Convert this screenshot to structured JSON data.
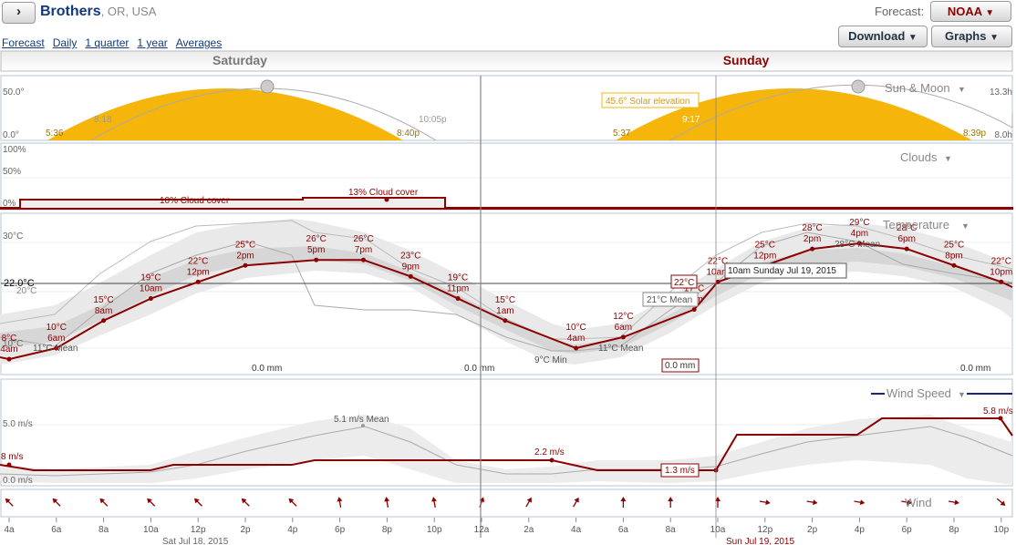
{
  "header": {
    "toggle": "›",
    "city": "Brothers",
    "region": ", OR, USA",
    "forecast_label": "Forecast:",
    "source": "NOAA",
    "download": "Download",
    "graphs": "Graphs"
  },
  "nav": [
    "Forecast",
    "Daily",
    "1 quarter",
    "1 year",
    "Averages"
  ],
  "days": [
    "Saturday",
    "Sunday"
  ],
  "panels": {
    "sun": {
      "title": "Sun & Moon",
      "y_hi": "50.0°",
      "y_lo": "0.0°",
      "r_hi": "13.3h",
      "r_lo": "8.0h",
      "sat_rise": "5:36",
      "sat_noon": "8:18",
      "sat_set": "8:40p",
      "sat_moonset": "10:05p",
      "sun_rise": "5:37",
      "sun_moon": "9:17",
      "sun_set": "8:39p",
      "callout": "45.6° Solar elevation"
    },
    "clouds": {
      "title": "Clouds",
      "y_100": "100%",
      "y_50": "50%",
      "y_0": "0%",
      "label_a": "10% Cloud cover",
      "label_b": "13% Cloud cover"
    },
    "temp": {
      "title": "Temperature",
      "y_30": "30°C",
      "y_20": "20°C",
      "y_10": "10°C",
      "cursor_value": "22.0°C",
      "tooltip": "10am Sunday Jul 19, 2015",
      "mean_tip": "21°C Mean",
      "max_tip": "22°C",
      "mean_low": "11°C Mean",
      "min_low": "9°C Min",
      "mean_hi": "28°C Mean",
      "precip": [
        "0.0 mm",
        "0.0 mm",
        "0.0 mm",
        "0.0 mm"
      ],
      "points": [
        [
          "8°C",
          "4am"
        ],
        [
          "10°C",
          "6am"
        ],
        [
          "15°C",
          "8am"
        ],
        [
          "19°C",
          "10am"
        ],
        [
          "22°C",
          "12pm"
        ],
        [
          "25°C",
          "2pm"
        ],
        [
          "26°C",
          "5pm"
        ],
        [
          "26°C",
          "7pm"
        ],
        [
          "23°C",
          "9pm"
        ],
        [
          "19°C",
          "11pm"
        ],
        [
          "15°C",
          "1am"
        ],
        [
          "10°C",
          "4am"
        ],
        [
          "12°C",
          "6am"
        ],
        [
          "17°C",
          "9am"
        ],
        [
          "22°C",
          "10am"
        ],
        [
          "25°C",
          "12pm"
        ],
        [
          "28°C",
          "2pm"
        ],
        [
          "29°C",
          "4pm"
        ],
        [
          "28°C",
          "6pm"
        ],
        [
          "25°C",
          "8pm"
        ],
        [
          "22°C",
          "10pm"
        ]
      ]
    },
    "wind": {
      "title": "Wind Speed",
      "title2": "Wind",
      "y_5": "5.0 m/s",
      "y_0": "0.0 m/s",
      "start": "8 m/s",
      "mean": "5.1 m/s Mean",
      "mid": "2.2 m/s",
      "cur": "1.3 m/s",
      "end": "5.8 m/s"
    }
  },
  "time_axis": [
    "4a",
    "6a",
    "8a",
    "10a",
    "12p",
    "2p",
    "4p",
    "6p",
    "8p",
    "10p",
    "12a",
    "2a",
    "4a",
    "6a",
    "8a",
    "10a",
    "12p",
    "2p",
    "4p",
    "6p",
    "8p",
    "10p"
  ],
  "dates": [
    "Sat Jul 18, 2015",
    "Sun Jul 19, 2015"
  ],
  "colors": {
    "accent": "#8b0000",
    "sun": "#f5b50a",
    "link": "#123a7d"
  },
  "chart_data": [
    {
      "type": "area",
      "title": "Sun & Moon",
      "series": [
        {
          "name": "Solar elevation",
          "x": [
            "5:36",
            "8:40p",
            "5:37",
            "8:39p"
          ],
          "values": [
            0,
            0,
            0,
            0
          ]
        }
      ],
      "annotation": "45.6° Solar elevation"
    },
    {
      "type": "line",
      "title": "Clouds",
      "ylim": [
        0,
        100
      ],
      "annotations": [
        "10% Cloud cover",
        "13% Cloud cover"
      ]
    },
    {
      "type": "line",
      "title": "Temperature",
      "ylabel": "°C",
      "x": [
        "4am",
        "6am",
        "8am",
        "10am",
        "12pm",
        "2pm",
        "5pm",
        "7pm",
        "9pm",
        "11pm",
        "1am",
        "4am",
        "6am",
        "9am",
        "10am",
        "12pm",
        "2pm",
        "4pm",
        "6pm",
        "8pm",
        "10pm"
      ],
      "values": [
        8,
        10,
        15,
        19,
        22,
        25,
        26,
        26,
        23,
        19,
        15,
        10,
        12,
        17,
        22,
        25,
        28,
        29,
        28,
        25,
        22
      ]
    },
    {
      "type": "line",
      "title": "Wind Speed",
      "ylabel": "m/s",
      "annotations": [
        "5.1 m/s Mean",
        "2.2 m/s",
        "1.3 m/s",
        "5.8 m/s"
      ]
    }
  ]
}
